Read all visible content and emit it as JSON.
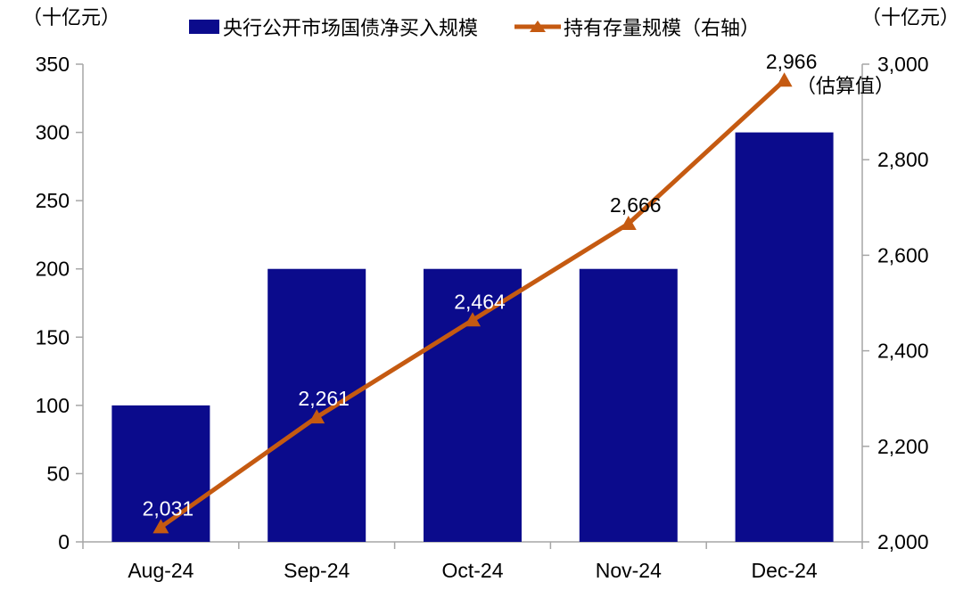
{
  "axis_unit_left": "（十亿元）",
  "axis_unit_right": "（十亿元）",
  "legend": {
    "bar_label": "央行公开市场国债净买入规模",
    "line_label": "持有存量规模（右轴）"
  },
  "colors": {
    "bar": "#0B0B8C",
    "line": "#C55A11",
    "axis": "#A6A6A6",
    "text": "#000000",
    "label_on_bar": "#FFFFFF"
  },
  "chart_data": {
    "type": "bar",
    "categories": [
      "Aug-24",
      "Sep-24",
      "Oct-24",
      "Nov-24",
      "Dec-24"
    ],
    "series": [
      {
        "name": "央行公开市场国债净买入规模",
        "type": "bar",
        "axis": "left",
        "values": [
          100,
          200,
          200,
          200,
          300
        ]
      },
      {
        "name": "持有存量规模（右轴）",
        "type": "line",
        "axis": "right",
        "values": [
          2031,
          2261,
          2464,
          2666,
          2966
        ],
        "labels": [
          "2,031",
          "2,261",
          "2,464",
          "2,666",
          "2,966"
        ],
        "label_colors": [
          "#FFFFFF",
          "#FFFFFF",
          "#FFFFFF",
          "#000000",
          "#000000"
        ]
      }
    ],
    "left_axis": {
      "min": 0,
      "max": 350,
      "step": 50,
      "tick_labels": [
        "0",
        "50",
        "100",
        "150",
        "200",
        "250",
        "300",
        "350"
      ]
    },
    "right_axis": {
      "min": 2000,
      "max": 3000,
      "step": 200,
      "tick_labels": [
        "2,000",
        "2,200",
        "2,400",
        "2,600",
        "2,800",
        "3,000"
      ]
    },
    "annotation": "（估算值）",
    "grid": false,
    "legend_position": "top"
  }
}
